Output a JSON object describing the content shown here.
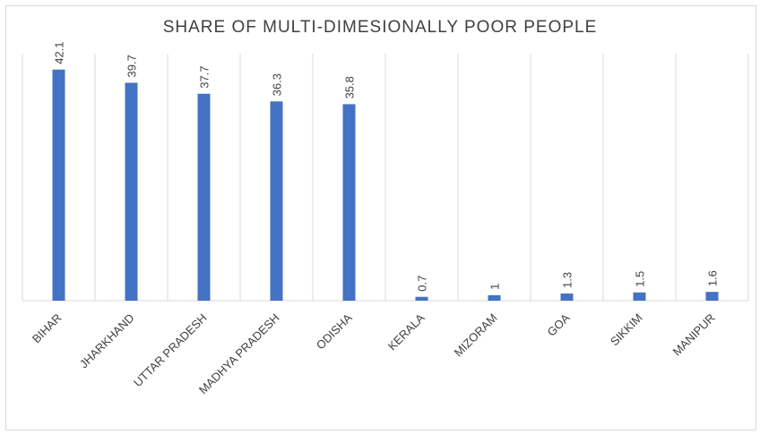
{
  "chart_data": {
    "type": "bar",
    "title": "SHARE OF MULTI-DIMESIONALLY POOR PEOPLE",
    "categories": [
      "BIHAR",
      "JHARKHAND",
      "UTTAR PRADESH",
      "MADHYA PRADESH",
      "ODISHA",
      "KERALA",
      "MIZORAM",
      "GOA",
      "SIKKIM",
      "MANIPUR"
    ],
    "values": [
      42.1,
      39.7,
      37.7,
      36.3,
      35.8,
      0.7,
      1,
      1.3,
      1.5,
      1.6
    ],
    "data_labels": [
      "42.1",
      "39.7",
      "37.7",
      "36.3",
      "35.8",
      "0.7",
      "1",
      "1.3",
      "1.5",
      "1.6"
    ],
    "xlabel": "",
    "ylabel": "",
    "ylim": [
      0,
      45
    ],
    "grid": "vertical category separators",
    "legend": "none",
    "bar_color": "#4472c4",
    "grid_color": "#d9d9d9"
  }
}
